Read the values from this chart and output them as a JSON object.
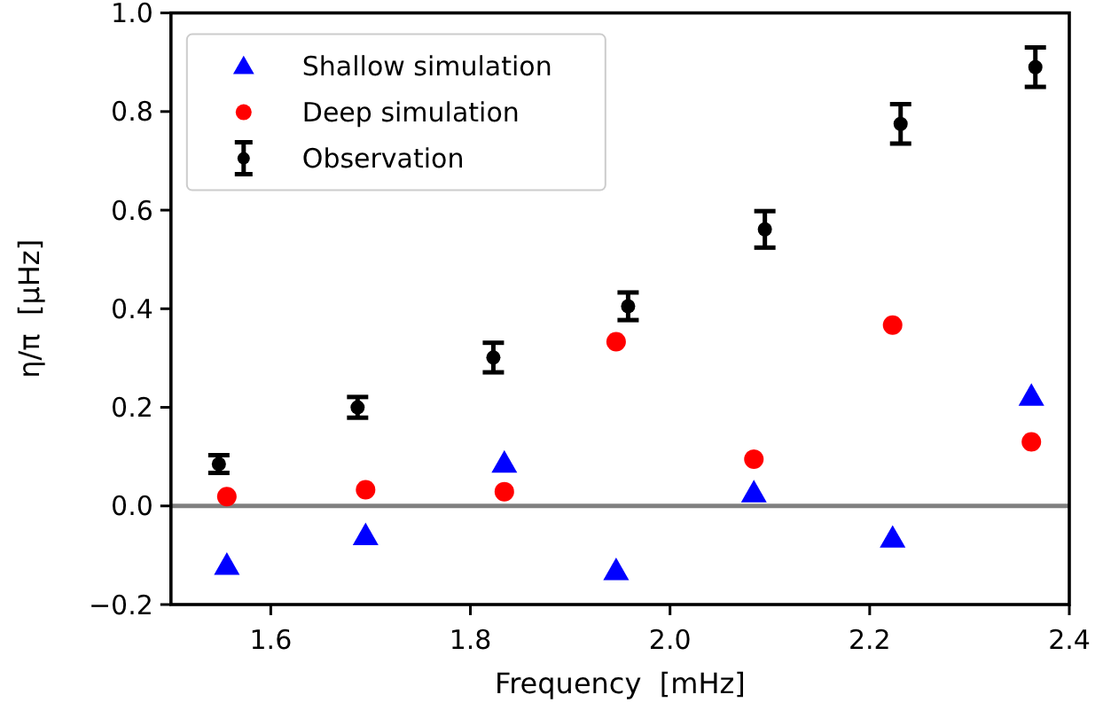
{
  "chart_data": {
    "type": "scatter",
    "xlabel": "Frequency  [mHz]",
    "ylabel": "η/π  [μHz]",
    "xlim": [
      1.5,
      2.4
    ],
    "xticks": [
      1.6,
      1.8,
      {
        "value": 2,
        "label": "2.0"
      },
      2.2,
      2.4
    ],
    "ylim": [
      -0.2,
      1.0
    ],
    "yticks": [
      {
        "value": -0.2,
        "label": "−0.2"
      },
      {
        "value": 0,
        "label": "0.0"
      },
      0.2,
      0.4,
      0.6,
      0.8,
      {
        "value": 1,
        "label": "1.0"
      }
    ],
    "grid": false,
    "legend": "top left",
    "ref_lines": [
      {
        "axis": "y",
        "value": 0,
        "color": "#808080",
        "line_style": "solid"
      }
    ],
    "series": [
      {
        "name": "Shallow simulation",
        "color": "#0000ff",
        "marker": "triangle",
        "x": [
          1.556,
          1.695,
          1.834,
          1.946,
          2.084,
          2.223,
          2.362
        ],
        "values": [
          -0.12,
          -0.06,
          0.087,
          -0.131,
          0.027,
          -0.065,
          0.223
        ]
      },
      {
        "name": "Deep simulation",
        "color": "#ff0000",
        "marker": "circle",
        "x": [
          1.556,
          1.695,
          1.834,
          1.946,
          2.084,
          2.223,
          2.362
        ],
        "values": [
          0.019,
          0.033,
          0.029,
          0.333,
          0.095,
          0.367,
          0.13
        ]
      },
      {
        "name": "Observation",
        "color": "#000000",
        "marker": "circle",
        "x": [
          1.548,
          1.687,
          1.823,
          1.958,
          2.095,
          2.231,
          2.366
        ],
        "values": [
          0.085,
          0.2,
          0.301,
          0.405,
          0.561,
          0.775,
          0.89
        ],
        "errors": [
          0.018,
          0.021,
          0.03,
          0.028,
          0.037,
          0.04,
          0.04
        ]
      }
    ]
  }
}
